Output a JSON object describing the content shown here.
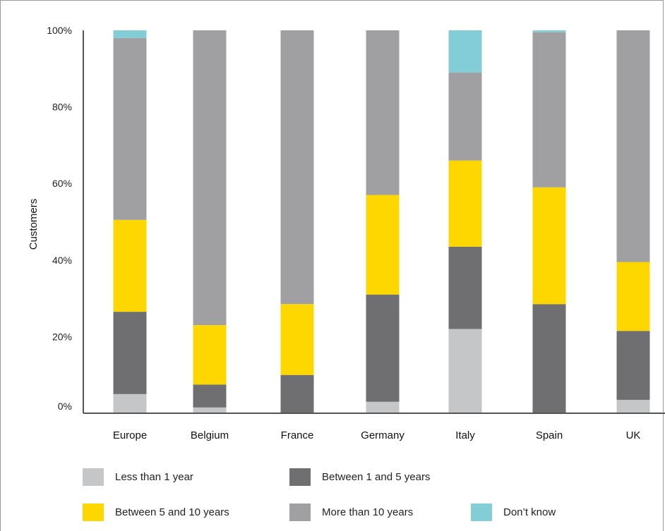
{
  "chart_data": {
    "type": "bar",
    "stacked": true,
    "ylabel": "Customers",
    "xlabel": "",
    "title": "",
    "ylim": [
      0,
      100
    ],
    "yticks": [
      "0%",
      "20%",
      "40%",
      "60%",
      "80%",
      "100%"
    ],
    "categories": [
      "Europe",
      "Belgium",
      "France",
      "Germany",
      "Italy",
      "Spain",
      "UK"
    ],
    "series": [
      {
        "name": "Less than 1 year",
        "color": "#c5c6c8",
        "values": [
          5,
          1.5,
          0,
          3,
          22,
          0,
          3.5
        ]
      },
      {
        "name": "Between 1 and 5 years",
        "color": "#6f6f71",
        "values": [
          21.5,
          6,
          10,
          28,
          21.5,
          28.5,
          18
        ]
      },
      {
        "name": "Between 5 and 10 years",
        "color": "#ffd700",
        "values": [
          24,
          15.5,
          18.5,
          26,
          22.5,
          30.5,
          18
        ]
      },
      {
        "name": "More than 10 years",
        "color": "#a0a0a2",
        "values": [
          47.5,
          77,
          71.5,
          43,
          23,
          40.5,
          60.5
        ]
      },
      {
        "name": "Don't know",
        "color": "#83cdd6",
        "values": [
          2,
          0,
          0,
          0,
          11,
          0.5,
          0
        ]
      }
    ],
    "legend_position": "bottom",
    "grid": false
  },
  "legend": [
    {
      "label": "Less than 1 year",
      "color": "#c5c6c8"
    },
    {
      "label": "Between 1 and 5 years",
      "color": "#6f6f71"
    },
    {
      "label": "Between 5 and 10 years",
      "color": "#ffd700"
    },
    {
      "label": "More than 10 years",
      "color": "#a0a0a2"
    },
    {
      "label": "Don’t know",
      "color": "#83cdd6"
    }
  ]
}
